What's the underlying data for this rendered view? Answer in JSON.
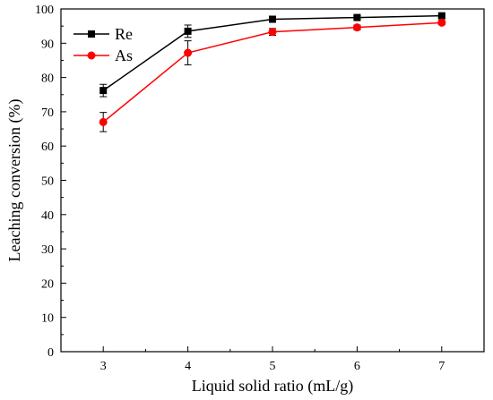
{
  "chart_data": {
    "type": "line",
    "title": "",
    "xlabel": "Liquid solid ratio (mL/g)",
    "ylabel": "Leaching conversion (%)",
    "x": [
      3,
      4,
      5,
      6,
      7
    ],
    "xlim": [
      2.5,
      7.5
    ],
    "ylim": [
      0,
      100
    ],
    "xticks": [
      3,
      4,
      5,
      6,
      7
    ],
    "yticks": [
      0,
      10,
      20,
      30,
      40,
      50,
      60,
      70,
      80,
      90,
      100
    ],
    "grid": false,
    "legend_position": "top-left",
    "series": [
      {
        "name": "Re",
        "color": "#000000",
        "marker": "square",
        "values": [
          76.2,
          93.5,
          97.0,
          97.5,
          98.0
        ],
        "errors": [
          1.8,
          1.8,
          0.6,
          0.5,
          0.4
        ]
      },
      {
        "name": "As",
        "color": "#ff0000",
        "marker": "circle",
        "values": [
          67.0,
          87.2,
          93.3,
          94.6,
          96.0
        ],
        "errors": [
          2.8,
          3.5,
          1.0,
          0.7,
          0.6
        ]
      }
    ]
  }
}
